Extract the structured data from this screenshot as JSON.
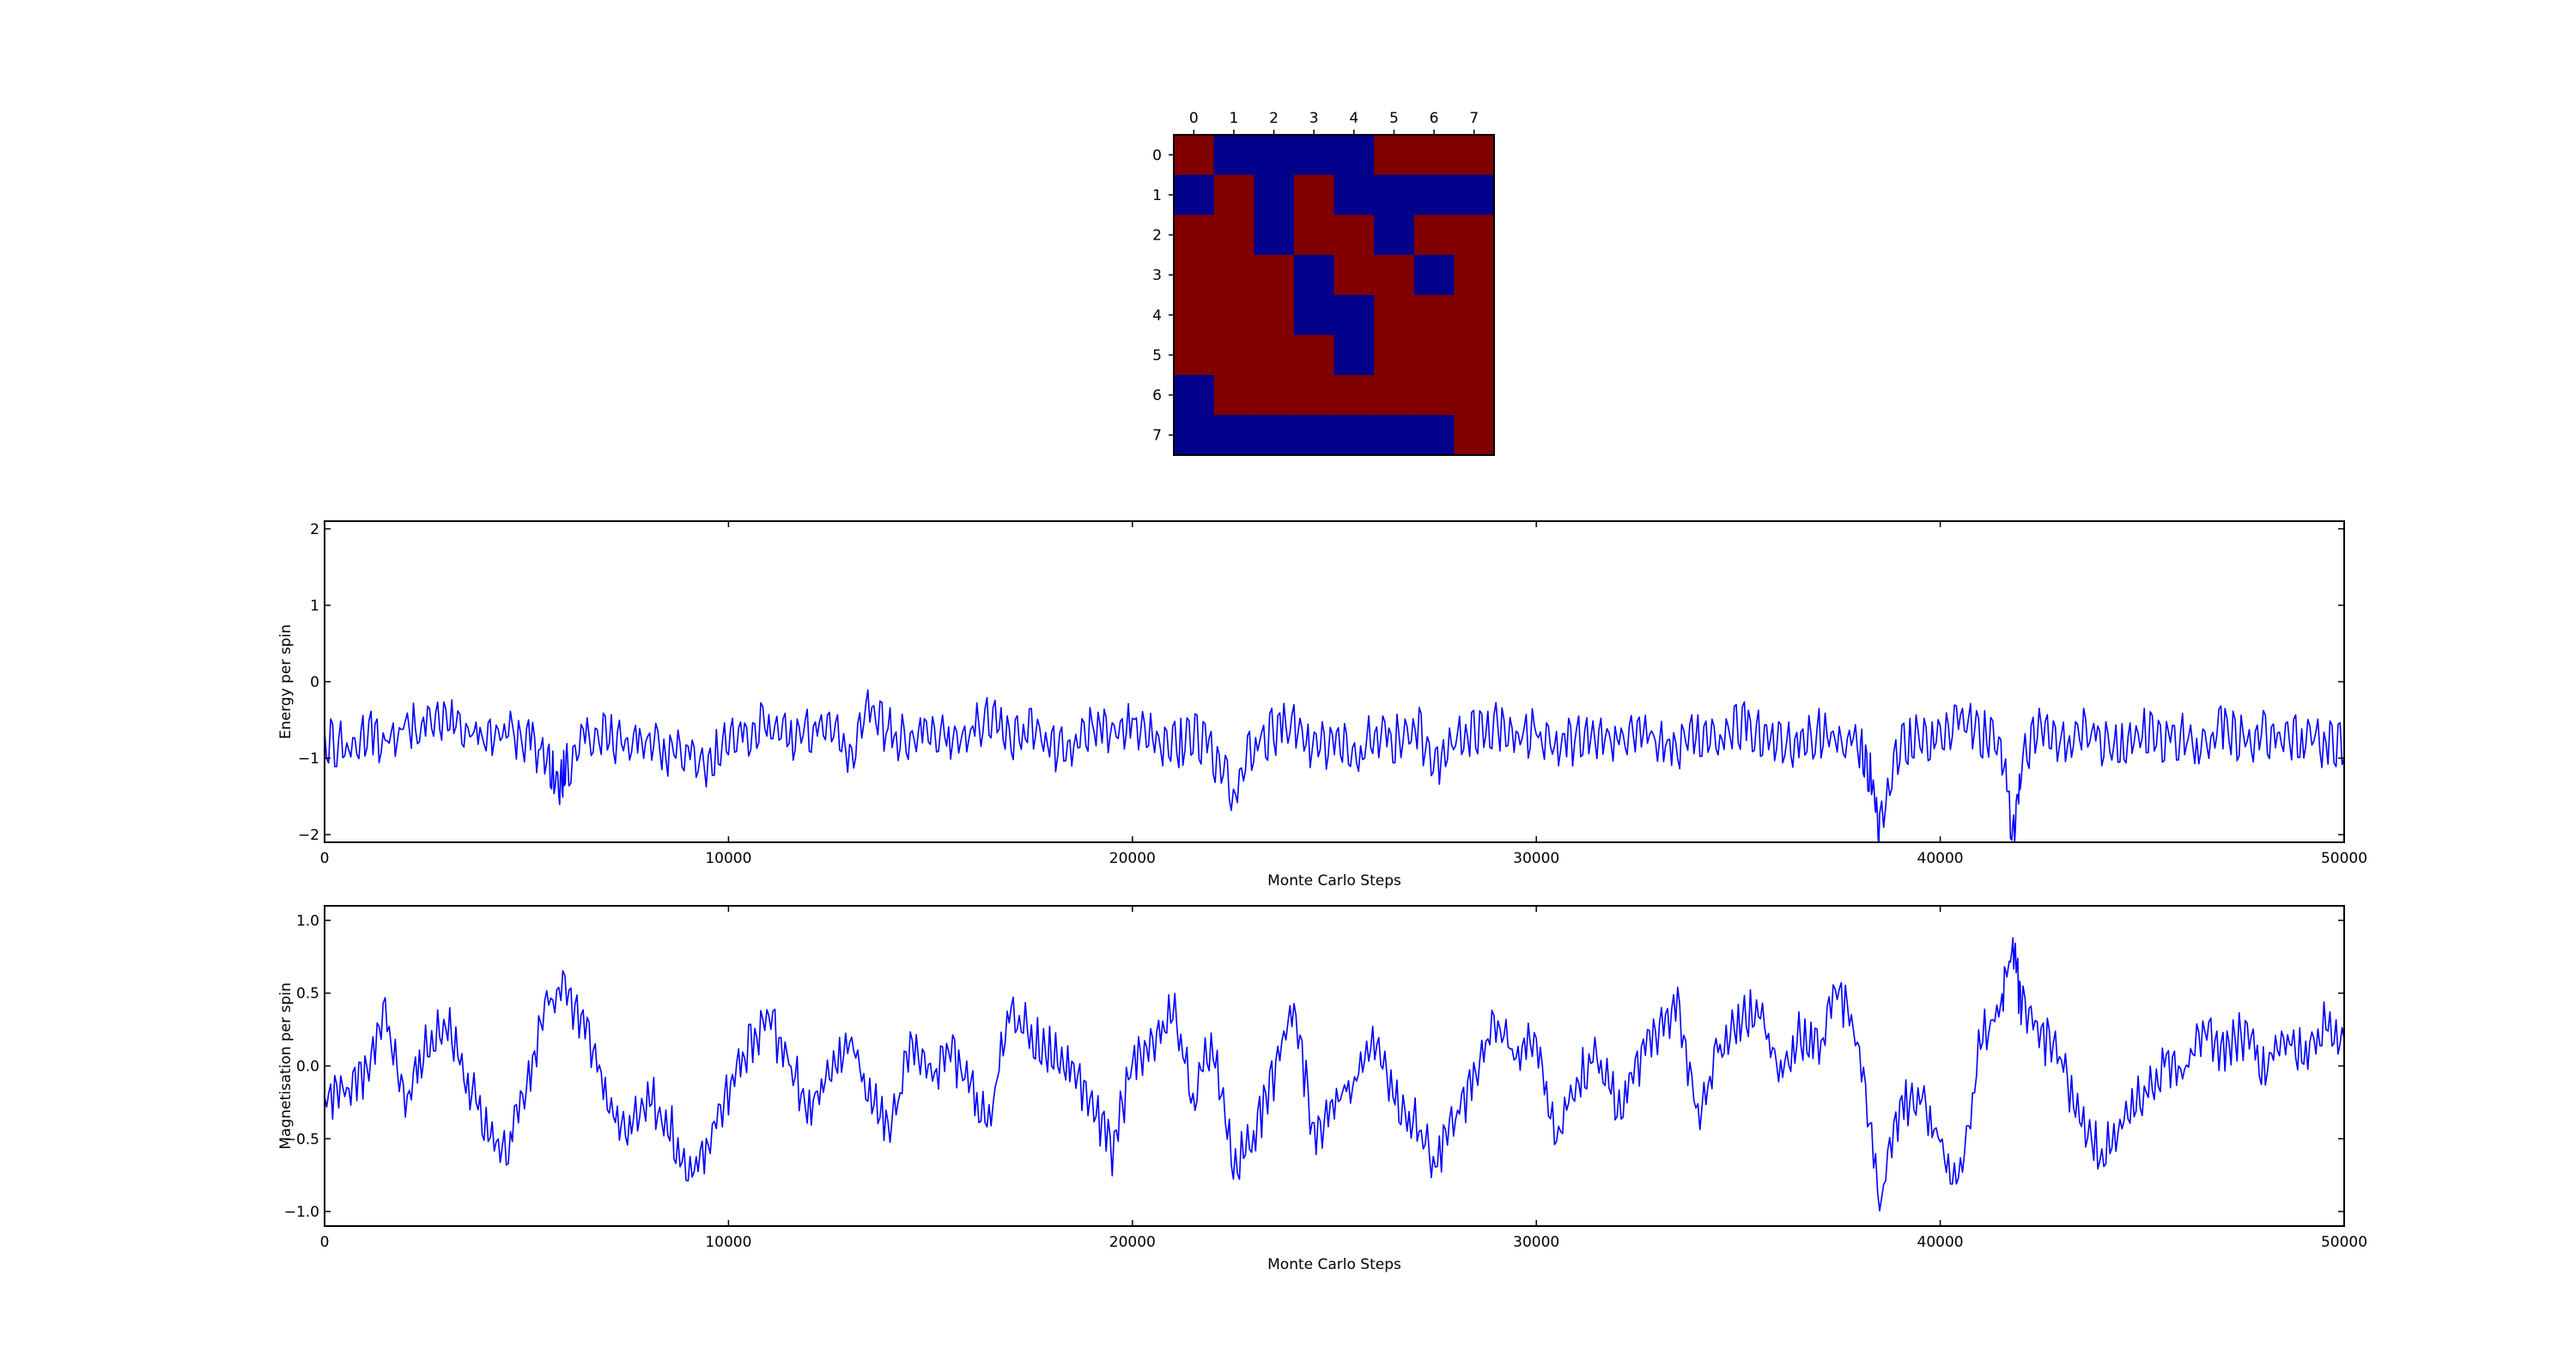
{
  "chart_data": [
    {
      "type": "heatmap",
      "title": "",
      "x_ticks": [
        "0",
        "1",
        "2",
        "3",
        "4",
        "5",
        "6",
        "7"
      ],
      "y_ticks": [
        "0",
        "1",
        "2",
        "3",
        "4",
        "5",
        "6",
        "7"
      ],
      "xaxis_position": "top",
      "grid": false,
      "colors": {
        "1": "#800000",
        "-1": "#00008b"
      },
      "values": [
        [
          1,
          -1,
          -1,
          -1,
          -1,
          1,
          1,
          1
        ],
        [
          -1,
          1,
          -1,
          1,
          -1,
          -1,
          -1,
          -1
        ],
        [
          1,
          1,
          -1,
          1,
          1,
          -1,
          1,
          1
        ],
        [
          1,
          1,
          1,
          -1,
          1,
          1,
          -1,
          1
        ],
        [
          1,
          1,
          1,
          -1,
          -1,
          1,
          1,
          1
        ],
        [
          1,
          1,
          1,
          1,
          -1,
          1,
          1,
          1
        ],
        [
          -1,
          1,
          1,
          1,
          1,
          1,
          1,
          1
        ],
        [
          -1,
          -1,
          -1,
          -1,
          -1,
          -1,
          -1,
          1
        ]
      ]
    },
    {
      "type": "line",
      "title": "",
      "xlabel": "Monte Carlo Steps",
      "ylabel": "Energy per spin",
      "xlim": [
        0,
        50000
      ],
      "ylim": [
        -2.1,
        2.1
      ],
      "x_ticks": [
        0,
        10000,
        20000,
        30000,
        40000,
        50000
      ],
      "y_ticks": [
        -2,
        -1,
        0,
        1,
        2
      ],
      "grid": false,
      "color": "#0000ff",
      "series": [
        {
          "x": [
            0,
            500,
            1000,
            1500,
            2000,
            2500,
            3000,
            3500,
            4000,
            4500,
            5000,
            5500,
            5800,
            6000,
            6500,
            7000,
            7500,
            8000,
            8500,
            9000,
            9500,
            10000,
            10500,
            11000,
            11500,
            12000,
            12500,
            13000,
            13500,
            14000,
            14500,
            15000,
            15500,
            16000,
            16500,
            17000,
            17500,
            18000,
            18500,
            19000,
            19500,
            20000,
            20500,
            21000,
            21500,
            22000,
            22500,
            23000,
            23500,
            24000,
            24500,
            25000,
            25500,
            26000,
            26500,
            27000,
            27500,
            28000,
            28500,
            29000,
            29500,
            30000,
            30500,
            31000,
            31500,
            32000,
            32500,
            33000,
            33500,
            34000,
            34500,
            35000,
            35500,
            36000,
            36500,
            37000,
            37500,
            38000,
            38300,
            38500,
            39000,
            39500,
            40000,
            40500,
            41000,
            41500,
            41800,
            42000,
            42500,
            43000,
            43500,
            44000,
            44500,
            45000,
            45500,
            46000,
            46500,
            47000,
            47500,
            48000,
            48500,
            49000,
            49500,
            50000
          ],
          "y": [
            -0.6,
            -0.7,
            -0.5,
            -0.6,
            -0.4,
            -0.5,
            -0.3,
            -0.5,
            -0.6,
            -0.5,
            -0.6,
            -0.8,
            -1.3,
            -0.9,
            -0.6,
            -0.5,
            -0.7,
            -0.6,
            -0.8,
            -0.7,
            -0.9,
            -0.6,
            -0.5,
            -0.4,
            -0.6,
            -0.5,
            -0.4,
            -0.8,
            -0.2,
            -0.5,
            -0.6,
            -0.4,
            -0.6,
            -0.5,
            -0.3,
            -0.6,
            -0.5,
            -0.7,
            -0.6,
            -0.4,
            -0.5,
            -0.3,
            -0.6,
            -0.7,
            -0.5,
            -0.8,
            -1.3,
            -0.6,
            -0.5,
            -0.4,
            -0.7,
            -0.6,
            -0.8,
            -0.5,
            -0.6,
            -0.4,
            -0.9,
            -0.6,
            -0.5,
            -0.4,
            -0.6,
            -0.5,
            -0.7,
            -0.6,
            -0.5,
            -0.6,
            -0.4,
            -0.6,
            -0.7,
            -0.5,
            -0.6,
            -0.4,
            -0.5,
            -0.6,
            -0.7,
            -0.5,
            -0.6,
            -0.7,
            -1.1,
            -1.8,
            -0.7,
            -0.5,
            -0.6,
            -0.3,
            -0.5,
            -0.6,
            -1.8,
            -0.9,
            -0.4,
            -0.6,
            -0.5,
            -0.6,
            -0.7,
            -0.5,
            -0.6,
            -0.5,
            -0.7,
            -0.4,
            -0.6,
            -0.5,
            -0.6,
            -0.5,
            -0.7,
            -0.6
          ]
        }
      ]
    },
    {
      "type": "line",
      "title": "",
      "xlabel": "Monte Carlo Steps",
      "ylabel": "Magnetisation per spin",
      "xlim": [
        0,
        50000
      ],
      "ylim": [
        -1.1,
        1.1
      ],
      "x_ticks": [
        0,
        10000,
        20000,
        30000,
        40000,
        50000
      ],
      "y_ticks": [
        -1.0,
        -0.5,
        0.0,
        0.5,
        1.0
      ],
      "grid": false,
      "color": "#0000ff",
      "series": [
        {
          "x": [
            0,
            500,
            1000,
            1500,
            2000,
            2500,
            3000,
            3500,
            4000,
            4500,
            5000,
            5500,
            6000,
            6500,
            7000,
            7500,
            8000,
            8500,
            9000,
            9500,
            10000,
            10500,
            11000,
            11500,
            12000,
            12500,
            13000,
            13500,
            14000,
            14500,
            15000,
            15500,
            16000,
            16500,
            17000,
            17500,
            18000,
            18500,
            19000,
            19500,
            20000,
            20500,
            21000,
            21500,
            22000,
            22500,
            23000,
            23500,
            24000,
            24500,
            25000,
            25500,
            26000,
            26500,
            27000,
            27500,
            28000,
            28500,
            29000,
            29500,
            30000,
            30500,
            31000,
            31500,
            32000,
            32500,
            33000,
            33500,
            34000,
            34500,
            35000,
            35500,
            36000,
            36500,
            37000,
            37500,
            38000,
            38500,
            39000,
            39500,
            40000,
            40500,
            41000,
            41500,
            41800,
            42000,
            42500,
            43000,
            43500,
            44000,
            44500,
            45000,
            45500,
            46000,
            46500,
            47000,
            47500,
            48000,
            48500,
            49000,
            49500,
            50000
          ],
          "y": [
            -0.2,
            -0.1,
            0.0,
            0.4,
            -0.2,
            0.2,
            0.4,
            0.0,
            -0.3,
            -0.5,
            -0.1,
            0.5,
            0.6,
            0.3,
            -0.2,
            -0.3,
            -0.1,
            -0.3,
            -0.6,
            -0.5,
            -0.1,
            0.2,
            0.4,
            0.1,
            -0.2,
            0.1,
            0.3,
            -0.1,
            -0.4,
            0.2,
            0.0,
            0.2,
            -0.1,
            -0.2,
            0.5,
            0.3,
            0.2,
            0.1,
            -0.2,
            -0.5,
            0.1,
            0.2,
            0.5,
            -0.1,
            0.3,
            -0.6,
            -0.4,
            0.0,
            0.5,
            -0.4,
            -0.2,
            0.0,
            0.3,
            -0.1,
            -0.3,
            -0.6,
            -0.3,
            0.0,
            0.4,
            0.1,
            0.3,
            -0.4,
            0.0,
            0.2,
            -0.2,
            0.1,
            0.3,
            0.5,
            -0.3,
            0.2,
            0.4,
            0.5,
            0.1,
            0.3,
            0.2,
            0.6,
            0.2,
            -0.9,
            -0.2,
            -0.1,
            -0.4,
            -0.7,
            0.3,
            0.5,
            0.9,
            0.5,
            0.3,
            0.1,
            -0.3,
            -0.5,
            -0.3,
            -0.1,
            0.1,
            0.0,
            0.3,
            0.2,
            0.3,
            0.1,
            0.3,
            0.2,
            0.4,
            0.3
          ]
        }
      ]
    }
  ]
}
